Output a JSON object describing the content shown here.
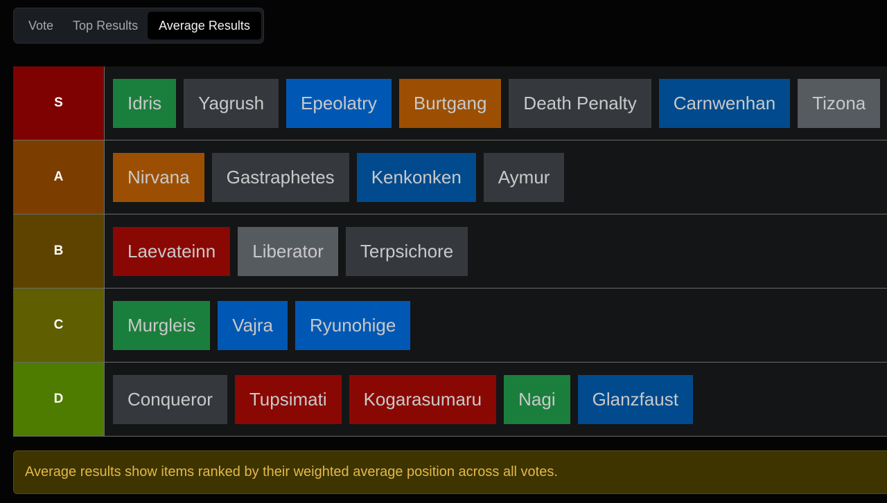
{
  "tabs": [
    {
      "label": "Vote",
      "active": false
    },
    {
      "label": "Top Results",
      "active": false
    },
    {
      "label": "Average Results",
      "active": true
    }
  ],
  "colors": {
    "green": "#1a7f3c",
    "gray": "#35393e",
    "light_gray": "#565b60",
    "blue": "#0158b4",
    "dark_blue": "#004a8d",
    "orange": "#9c4f02",
    "red": "#890804"
  },
  "tiers": [
    {
      "label": "S",
      "color": "#7f0202",
      "items": [
        {
          "name": "Idris",
          "color": "green"
        },
        {
          "name": "Yagrush",
          "color": "gray"
        },
        {
          "name": "Epeolatry",
          "color": "blue"
        },
        {
          "name": "Burtgang",
          "color": "orange"
        },
        {
          "name": "Death Penalty",
          "color": "gray"
        },
        {
          "name": "Carnwenhan",
          "color": "dark_blue"
        },
        {
          "name": "Tizona",
          "color": "light_gray"
        }
      ]
    },
    {
      "label": "A",
      "color": "#7c3e00",
      "items": [
        {
          "name": "Nirvana",
          "color": "orange"
        },
        {
          "name": "Gastraphetes",
          "color": "gray"
        },
        {
          "name": "Kenkonken",
          "color": "dark_blue"
        },
        {
          "name": "Aymur",
          "color": "gray"
        }
      ]
    },
    {
      "label": "B",
      "color": "#5e4300",
      "items": [
        {
          "name": "Laevateinn",
          "color": "red"
        },
        {
          "name": "Liberator",
          "color": "light_gray"
        },
        {
          "name": "Terpsichore",
          "color": "gray"
        }
      ]
    },
    {
      "label": "C",
      "color": "#5f5e00",
      "items": [
        {
          "name": "Murgleis",
          "color": "green"
        },
        {
          "name": "Vajra",
          "color": "blue"
        },
        {
          "name": "Ryunohige",
          "color": "blue"
        }
      ]
    },
    {
      "label": "D",
      "color": "#4d7c00",
      "items": [
        {
          "name": "Conqueror",
          "color": "gray"
        },
        {
          "name": "Tupsimati",
          "color": "red"
        },
        {
          "name": "Kogarasumaru",
          "color": "red"
        },
        {
          "name": "Nagi",
          "color": "green"
        },
        {
          "name": "Glanzfaust",
          "color": "dark_blue"
        }
      ]
    }
  ],
  "notice": {
    "text": "Average results show items ranked by their weighted average position across all votes."
  }
}
